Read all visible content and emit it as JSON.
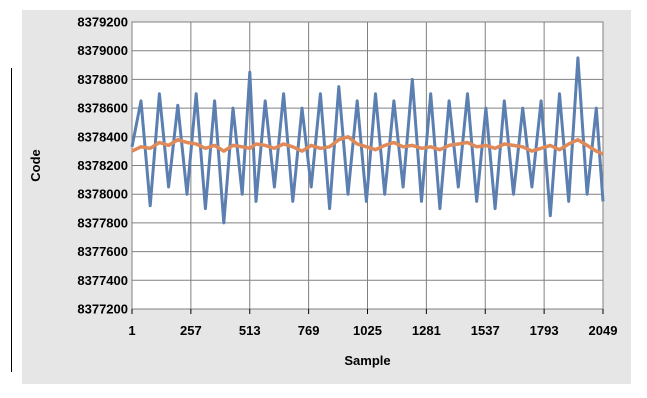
{
  "chart_data": {
    "type": "line",
    "title": "",
    "xlabel": "Sample",
    "ylabel": "Code",
    "xlim": [
      1,
      2049
    ],
    "ylim": [
      8377200,
      8379200
    ],
    "x_ticks": [
      "1",
      "257",
      "513",
      "769",
      "1025",
      "1281",
      "1537",
      "1793",
      "2049"
    ],
    "y_ticks": [
      "8379200",
      "8379000",
      "8378800",
      "8378600",
      "8378400",
      "8378200",
      "8378000",
      "8377800",
      "8377600",
      "8377400",
      "8377200"
    ],
    "grid": true,
    "legend": "none",
    "series": [
      {
        "color": "#5b7fb0",
        "description_only": false,
        "x": [
          1,
          40,
          80,
          120,
          160,
          200,
          240,
          280,
          320,
          360,
          400,
          440,
          480,
          513,
          540,
          580,
          620,
          660,
          700,
          740,
          780,
          820,
          860,
          900,
          940,
          980,
          1020,
          1060,
          1100,
          1140,
          1180,
          1220,
          1260,
          1300,
          1340,
          1380,
          1420,
          1460,
          1500,
          1540,
          1580,
          1620,
          1660,
          1700,
          1740,
          1780,
          1820,
          1860,
          1900,
          1940,
          1980,
          2020,
          2049
        ],
        "y": [
          8378330,
          8378650,
          8377920,
          8378700,
          8378050,
          8378620,
          8378000,
          8378700,
          8377900,
          8378650,
          8377800,
          8378600,
          8378000,
          8378850,
          8377950,
          8378650,
          8378050,
          8378700,
          8377950,
          8378600,
          8378050,
          8378700,
          8377900,
          8378750,
          8378000,
          8378650,
          8377950,
          8378700,
          8378000,
          8378650,
          8378050,
          8378800,
          8377950,
          8378700,
          8377900,
          8378650,
          8378050,
          8378700,
          8377950,
          8378600,
          8377900,
          8378650,
          8378000,
          8378600,
          8378050,
          8378650,
          8377850,
          8378700,
          8377950,
          8378950,
          8378000,
          8378600,
          8377950
        ]
      },
      {
        "color": "#e08a5a",
        "x": [
          1,
          40,
          80,
          120,
          160,
          200,
          240,
          280,
          320,
          360,
          400,
          440,
          480,
          513,
          540,
          580,
          620,
          660,
          700,
          740,
          780,
          820,
          860,
          900,
          940,
          980,
          1020,
          1060,
          1100,
          1140,
          1180,
          1220,
          1260,
          1300,
          1340,
          1380,
          1420,
          1460,
          1500,
          1540,
          1580,
          1620,
          1660,
          1700,
          1740,
          1780,
          1820,
          1860,
          1900,
          1940,
          1980,
          2020,
          2049
        ],
        "y": [
          8378300,
          8378330,
          8378320,
          8378360,
          8378340,
          8378380,
          8378360,
          8378350,
          8378320,
          8378340,
          8378300,
          8378340,
          8378330,
          8378320,
          8378350,
          8378340,
          8378320,
          8378350,
          8378330,
          8378300,
          8378340,
          8378320,
          8378330,
          8378380,
          8378400,
          8378350,
          8378330,
          8378310,
          8378340,
          8378360,
          8378330,
          8378340,
          8378320,
          8378330,
          8378310,
          8378340,
          8378350,
          8378360,
          8378330,
          8378340,
          8378320,
          8378350,
          8378340,
          8378330,
          8378300,
          8378320,
          8378340,
          8378310,
          8378350,
          8378380,
          8378340,
          8378300,
          8378280
        ]
      }
    ]
  }
}
